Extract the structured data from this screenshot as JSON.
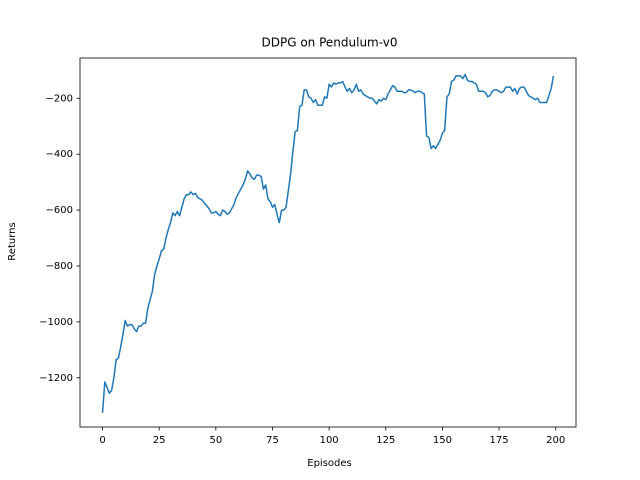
{
  "chart_data": {
    "type": "line",
    "title": "DDPG on Pendulum-v0",
    "x_label": "Episodes",
    "y_label": "Returns",
    "x": [
      0,
      1,
      2,
      3,
      4,
      5,
      6,
      7,
      8,
      9,
      10,
      11,
      12,
      13,
      14,
      15,
      16,
      17,
      18,
      19,
      20,
      21,
      22,
      23,
      24,
      25,
      26,
      27,
      28,
      29,
      30,
      31,
      32,
      33,
      34,
      35,
      36,
      37,
      38,
      39,
      40,
      41,
      42,
      43,
      44,
      45,
      46,
      47,
      48,
      49,
      50,
      51,
      52,
      53,
      54,
      55,
      56,
      57,
      58,
      59,
      60,
      61,
      62,
      63,
      64,
      65,
      66,
      67,
      68,
      69,
      70,
      71,
      72,
      73,
      74,
      75,
      76,
      77,
      78,
      79,
      80,
      81,
      82,
      83,
      84,
      85,
      86,
      87,
      88,
      89,
      90,
      91,
      92,
      93,
      94,
      95,
      96,
      97,
      98,
      99,
      100,
      101,
      102,
      103,
      104,
      105,
      106,
      107,
      108,
      109,
      110,
      111,
      112,
      113,
      114,
      115,
      116,
      117,
      118,
      119,
      120,
      121,
      122,
      123,
      124,
      125,
      126,
      127,
      128,
      129,
      130,
      131,
      132,
      133,
      134,
      135,
      136,
      137,
      138,
      139,
      140,
      141,
      142,
      143,
      144,
      145,
      146,
      147,
      148,
      149,
      150,
      151,
      152,
      153,
      154,
      155,
      156,
      157,
      158,
      159,
      160,
      161,
      162,
      163,
      164,
      165,
      166,
      167,
      168,
      169,
      170,
      171,
      172,
      173,
      174,
      175,
      176,
      177,
      178,
      179,
      180,
      181,
      182,
      183,
      184,
      185,
      186,
      187,
      188,
      189,
      190,
      191,
      192,
      193,
      194,
      195,
      196,
      197,
      198,
      199
    ],
    "series": [
      {
        "name": "Returns",
        "color": "#1f77b4",
        "values": [
          -1325,
          -1215,
          -1235,
          -1255,
          -1245,
          -1200,
          -1135,
          -1130,
          -1090,
          -1045,
          -995,
          -1015,
          -1010,
          -1010,
          -1025,
          -1035,
          -1015,
          -1015,
          -1005,
          -1005,
          -950,
          -920,
          -890,
          -830,
          -800,
          -775,
          -745,
          -740,
          -700,
          -670,
          -645,
          -610,
          -620,
          -605,
          -620,
          -590,
          -560,
          -545,
          -545,
          -535,
          -545,
          -540,
          -555,
          -560,
          -565,
          -575,
          -585,
          -595,
          -610,
          -610,
          -605,
          -615,
          -620,
          -600,
          -605,
          -615,
          -610,
          -595,
          -580,
          -555,
          -540,
          -525,
          -510,
          -490,
          -460,
          -470,
          -485,
          -490,
          -475,
          -475,
          -480,
          -525,
          -510,
          -560,
          -570,
          -590,
          -580,
          -615,
          -645,
          -600,
          -600,
          -590,
          -530,
          -470,
          -390,
          -320,
          -315,
          -230,
          -225,
          -170,
          -170,
          -195,
          -200,
          -215,
          -205,
          -225,
          -225,
          -225,
          -195,
          -200,
          -150,
          -160,
          -145,
          -150,
          -145,
          -145,
          -140,
          -160,
          -175,
          -165,
          -180,
          -170,
          -150,
          -175,
          -170,
          -185,
          -190,
          -195,
          -200,
          -200,
          -210,
          -220,
          -205,
          -210,
          -200,
          -205,
          -185,
          -170,
          -155,
          -160,
          -175,
          -175,
          -175,
          -180,
          -180,
          -170,
          -170,
          -175,
          -180,
          -175,
          -175,
          -180,
          -185,
          -335,
          -340,
          -380,
          -370,
          -380,
          -365,
          -350,
          -325,
          -315,
          -195,
          -185,
          -140,
          -135,
          -120,
          -120,
          -120,
          -130,
          -115,
          -135,
          -140,
          -140,
          -145,
          -150,
          -175,
          -175,
          -175,
          -180,
          -195,
          -190,
          -175,
          -170,
          -170,
          -175,
          -180,
          -175,
          -160,
          -160,
          -160,
          -175,
          -165,
          -185,
          -165,
          -160,
          -160,
          -175,
          -190,
          -195,
          -200,
          -205,
          -200,
          -215,
          -215,
          -215,
          -215,
          -190,
          -165,
          -120
        ]
      }
    ],
    "xlim": [
      -9.95,
      208.95
    ],
    "ylim": [
      -1376,
      -56
    ],
    "xticks": [
      0,
      25,
      50,
      75,
      100,
      125,
      150,
      175,
      200
    ],
    "yticks": [
      {
        "value": -1200,
        "label": "−1200"
      },
      {
        "value": -1000,
        "label": "−1000"
      },
      {
        "value": -800,
        "label": "−800"
      },
      {
        "value": -600,
        "label": "−600"
      },
      {
        "value": -400,
        "label": "−400"
      },
      {
        "value": -200,
        "label": "−200"
      }
    ],
    "grid": false
  }
}
